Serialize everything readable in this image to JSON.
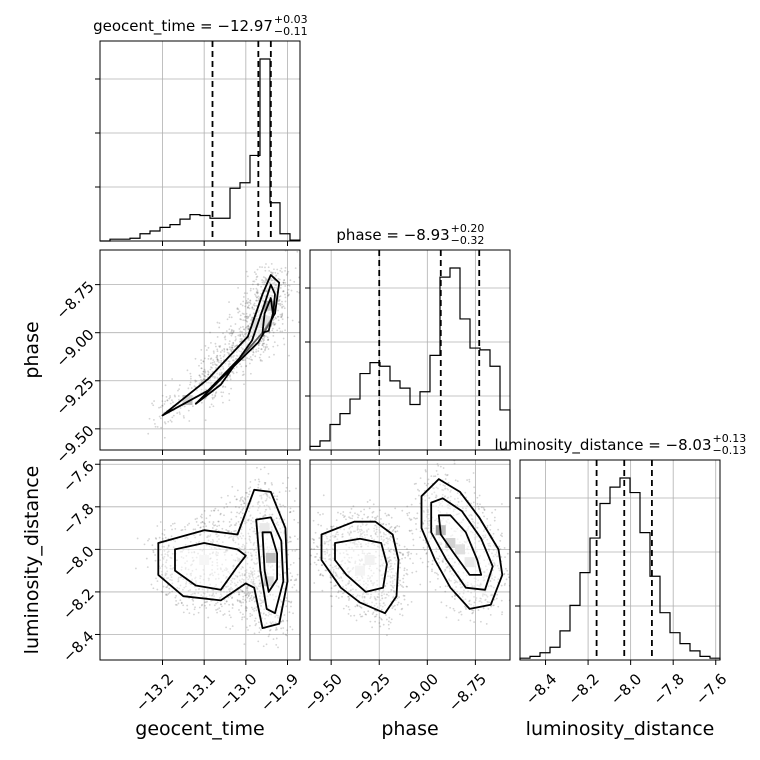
{
  "chart_data": {
    "type": "corner",
    "title": "",
    "parameters": [
      {
        "key": "geocent_time",
        "label": "geocent_time",
        "range": [
          -13.35,
          -12.87
        ],
        "ticks": [
          -13.2,
          -13.1,
          -13.0,
          -12.9
        ],
        "tick_labels": [
          "−13.2",
          "−13.1",
          "−13.0",
          "−12.9"
        ]
      },
      {
        "key": "phase",
        "label": "phase",
        "range": [
          -9.61,
          -8.57
        ],
        "ticks": [
          -9.5,
          -9.25,
          -9.0,
          -8.75
        ],
        "tick_labels": [
          "−9.50",
          "−9.25",
          "−9.00",
          "−8.75"
        ]
      },
      {
        "key": "luminosity_distance",
        "label": "luminosity_distance",
        "range": [
          -8.52,
          -7.58
        ],
        "ticks": [
          -8.4,
          -8.2,
          -8.0,
          -7.8,
          -7.6
        ],
        "tick_labels": [
          "−8.4",
          "−8.2",
          "−8.0",
          "−7.8",
          "−7.6"
        ]
      }
    ],
    "diagonal": [
      {
        "param": "geocent_time",
        "title_value": "−12.97",
        "title_plus": "+0.03",
        "title_minus": "−0.11",
        "quantiles": [
          -13.08,
          -12.97,
          -12.94
        ],
        "hist": [
          0.0,
          0.01,
          0.01,
          0.015,
          0.04,
          0.055,
          0.075,
          0.09,
          0.12,
          0.145,
          0.14,
          0.125,
          0.125,
          0.29,
          0.32,
          0.47,
          1.0,
          0.21,
          0.04,
          0.005
        ]
      },
      {
        "param": "phase",
        "title_value": "−8.93",
        "title_plus": "+0.20",
        "title_minus": "−0.32",
        "quantiles": [
          -9.25,
          -8.93,
          -8.73
        ],
        "hist": [
          0.02,
          0.05,
          0.14,
          0.2,
          0.28,
          0.42,
          0.48,
          0.46,
          0.38,
          0.34,
          0.25,
          0.32,
          0.52,
          0.95,
          1.0,
          0.72,
          0.56,
          0.55,
          0.46,
          0.22
        ]
      },
      {
        "param": "luminosity_distance",
        "title_value": "−8.03",
        "title_plus": "+0.13",
        "title_minus": "−0.13",
        "quantiles": [
          -8.16,
          -8.03,
          -7.9
        ],
        "hist": [
          0.01,
          0.02,
          0.04,
          0.07,
          0.16,
          0.3,
          0.48,
          0.67,
          0.86,
          0.95,
          1.0,
          0.92,
          0.7,
          0.46,
          0.26,
          0.15,
          0.09,
          0.05,
          0.02,
          0.01
        ]
      }
    ],
    "pairs": [
      {
        "x": "geocent_time",
        "y": "phase",
        "label": "phase vs geocent_time",
        "contours": [
          [
            [
              -13.2,
              -9.43
            ],
            [
              -13.09,
              -9.24
            ],
            [
              -12.995,
              -9.02
            ],
            [
              -12.96,
              -8.8
            ],
            [
              -12.94,
              -8.7
            ],
            [
              -12.92,
              -8.74
            ],
            [
              -12.93,
              -8.9
            ],
            [
              -12.96,
              -9.0
            ],
            [
              -13.0,
              -9.1
            ],
            [
              -13.09,
              -9.3
            ],
            [
              -13.2,
              -9.43
            ]
          ],
          [
            [
              -13.12,
              -9.37
            ],
            [
              -13.06,
              -9.27
            ],
            [
              -12.985,
              -9.04
            ],
            [
              -12.955,
              -8.85
            ],
            [
              -12.94,
              -8.75
            ],
            [
              -12.93,
              -8.8
            ],
            [
              -12.935,
              -8.92
            ],
            [
              -12.97,
              -9.05
            ],
            [
              -13.05,
              -9.22
            ],
            [
              -13.12,
              -9.37
            ]
          ],
          [
            [
              -12.96,
              -9.0
            ],
            [
              -12.955,
              -8.9
            ],
            [
              -12.94,
              -8.82
            ],
            [
              -12.935,
              -8.9
            ],
            [
              -12.945,
              -8.99
            ],
            [
              -12.96,
              -9.0
            ]
          ]
        ],
        "dense_cells": [
          [
            -12.945,
            -8.86,
            0.8
          ],
          [
            -12.95,
            -8.94,
            0.4
          ],
          [
            -12.975,
            -8.95,
            0.2
          ],
          [
            -13.14,
            -9.35,
            0.25
          ]
        ],
        "scatter": {
          "count": 1100,
          "seed": 11
        }
      },
      {
        "x": "geocent_time",
        "y": "luminosity_distance",
        "label": "luminosity_distance vs geocent_time",
        "contours": [
          [
            [
              -13.21,
              -7.97
            ],
            [
              -13.1,
              -7.91
            ],
            [
              -13.02,
              -7.93
            ],
            [
              -12.98,
              -7.72
            ],
            [
              -12.94,
              -7.73
            ],
            [
              -12.905,
              -7.9
            ],
            [
              -12.9,
              -8.15
            ],
            [
              -12.92,
              -8.35
            ],
            [
              -12.96,
              -8.37
            ],
            [
              -12.98,
              -8.18
            ],
            [
              -13.0,
              -8.16
            ],
            [
              -13.06,
              -8.24
            ],
            [
              -13.15,
              -8.22
            ],
            [
              -13.21,
              -8.12
            ],
            [
              -13.21,
              -7.97
            ]
          ],
          [
            [
              -13.17,
              -8.0
            ],
            [
              -13.1,
              -7.97
            ],
            [
              -13.02,
              -8.0
            ],
            [
              -13.0,
              -8.03
            ],
            [
              -13.02,
              -8.08
            ],
            [
              -13.06,
              -8.19
            ],
            [
              -13.12,
              -8.17
            ],
            [
              -13.17,
              -8.1
            ],
            [
              -13.17,
              -8.0
            ]
          ],
          [
            [
              -12.975,
              -7.86
            ],
            [
              -12.94,
              -7.85
            ],
            [
              -12.915,
              -7.96
            ],
            [
              -12.91,
              -8.15
            ],
            [
              -12.93,
              -8.3
            ],
            [
              -12.95,
              -8.28
            ],
            [
              -12.965,
              -8.1
            ],
            [
              -12.975,
              -7.86
            ]
          ],
          [
            [
              -12.96,
              -7.92
            ],
            [
              -12.94,
              -7.92
            ],
            [
              -12.925,
              -8.02
            ],
            [
              -12.925,
              -8.14
            ],
            [
              -12.945,
              -8.2
            ],
            [
              -12.955,
              -8.1
            ],
            [
              -12.96,
              -7.92
            ]
          ]
        ],
        "dense_cells": [
          [
            -12.94,
            -8.04,
            0.95
          ],
          [
            -12.945,
            -8.15,
            0.5
          ],
          [
            -12.955,
            -7.9,
            0.2
          ],
          [
            -13.1,
            -8.05,
            0.08
          ]
        ],
        "scatter": {
          "count": 1300,
          "seed": 23
        }
      },
      {
        "x": "phase",
        "y": "luminosity_distance",
        "label": "luminosity_distance vs phase",
        "contours": [
          [
            [
              -9.55,
              -7.93
            ],
            [
              -9.38,
              -7.87
            ],
            [
              -9.27,
              -7.87
            ],
            [
              -9.18,
              -7.93
            ],
            [
              -9.15,
              -8.05
            ],
            [
              -9.16,
              -8.22
            ],
            [
              -9.22,
              -8.3
            ],
            [
              -9.35,
              -8.25
            ],
            [
              -9.45,
              -8.18
            ],
            [
              -9.55,
              -8.05
            ],
            [
              -9.55,
              -7.93
            ]
          ],
          [
            [
              -9.48,
              -7.97
            ],
            [
              -9.35,
              -7.95
            ],
            [
              -9.24,
              -7.97
            ],
            [
              -9.21,
              -8.07
            ],
            [
              -9.23,
              -8.18
            ],
            [
              -9.32,
              -8.2
            ],
            [
              -9.42,
              -8.12
            ],
            [
              -9.48,
              -8.05
            ],
            [
              -9.48,
              -7.97
            ]
          ],
          [
            [
              -9.03,
              -7.75
            ],
            [
              -8.94,
              -7.67
            ],
            [
              -8.83,
              -7.73
            ],
            [
              -8.73,
              -7.85
            ],
            [
              -8.63,
              -8.0
            ],
            [
              -8.61,
              -8.12
            ],
            [
              -8.67,
              -8.26
            ],
            [
              -8.78,
              -8.28
            ],
            [
              -8.88,
              -8.18
            ],
            [
              -8.96,
              -8.05
            ],
            [
              -9.03,
              -7.9
            ],
            [
              -9.03,
              -7.75
            ]
          ],
          [
            [
              -8.98,
              -7.78
            ],
            [
              -8.92,
              -7.76
            ],
            [
              -8.82,
              -7.82
            ],
            [
              -8.72,
              -7.95
            ],
            [
              -8.66,
              -8.08
            ],
            [
              -8.7,
              -8.19
            ],
            [
              -8.8,
              -8.18
            ],
            [
              -8.9,
              -8.05
            ],
            [
              -8.98,
              -7.92
            ],
            [
              -8.98,
              -7.78
            ]
          ],
          [
            [
              -8.94,
              -7.84
            ],
            [
              -8.88,
              -7.84
            ],
            [
              -8.8,
              -7.92
            ],
            [
              -8.74,
              -8.05
            ],
            [
              -8.72,
              -8.12
            ],
            [
              -8.78,
              -8.12
            ],
            [
              -8.86,
              -8.02
            ],
            [
              -8.93,
              -7.93
            ],
            [
              -8.94,
              -7.84
            ]
          ]
        ],
        "dense_cells": [
          [
            -8.93,
            -7.91,
            0.95
          ],
          [
            -8.88,
            -7.97,
            0.65
          ],
          [
            -8.83,
            -8.0,
            0.45
          ],
          [
            -8.78,
            -8.06,
            0.3
          ],
          [
            -9.3,
            -8.05,
            0.12
          ],
          [
            -9.35,
            -8.1,
            0.1
          ]
        ],
        "scatter": {
          "count": 1500,
          "seed": 37
        }
      }
    ],
    "grid": true,
    "legend": "none"
  }
}
